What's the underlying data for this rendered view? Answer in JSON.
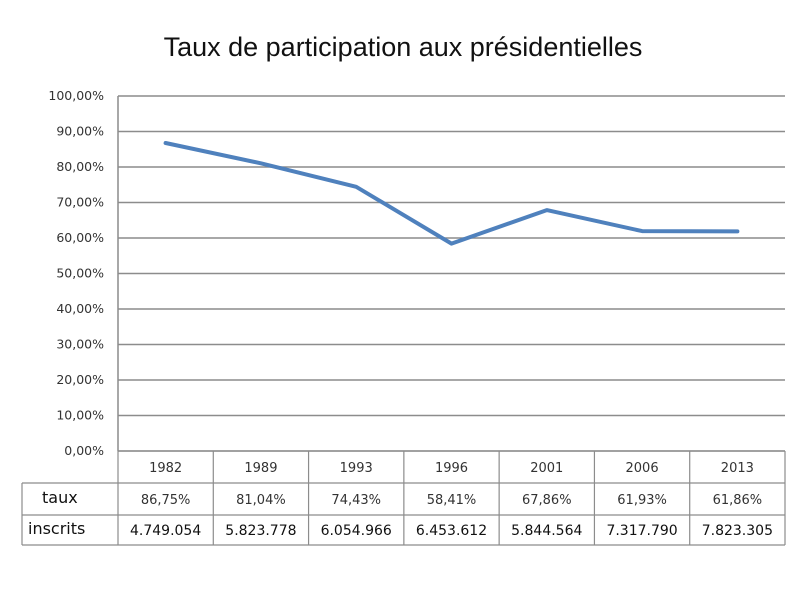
{
  "chart_data": {
    "type": "line",
    "title": "Taux de participation aux présidentielles",
    "xlabel": "",
    "ylabel": "",
    "ylim": [
      0,
      100
    ],
    "grid": true,
    "yticks": [
      "0,00%",
      "10,00%",
      "20,00%",
      "30,00%",
      "40,00%",
      "50,00%",
      "60,00%",
      "70,00%",
      "80,00%",
      "90,00%",
      "100,00%"
    ],
    "categories": [
      "1982",
      "1989",
      "1993",
      "1996",
      "2001",
      "2006",
      "2013"
    ],
    "series": [
      {
        "name": "taux",
        "values": [
          86.75,
          81.04,
          74.43,
          58.41,
          67.86,
          61.93,
          61.86
        ],
        "color": "#4f81bd"
      }
    ],
    "table": {
      "rows": [
        {
          "label": "taux",
          "cells": [
            "86,75%",
            "81,04%",
            "74,43%",
            "58,41%",
            "67,86%",
            "61,93%",
            "61,86%"
          ]
        },
        {
          "label": "inscrits",
          "cells": [
            "4.749.054",
            "5.823.778",
            "6.054.966",
            "6.453.612",
            "5.844.564",
            "7.317.790",
            "7.823.305"
          ]
        }
      ]
    }
  }
}
